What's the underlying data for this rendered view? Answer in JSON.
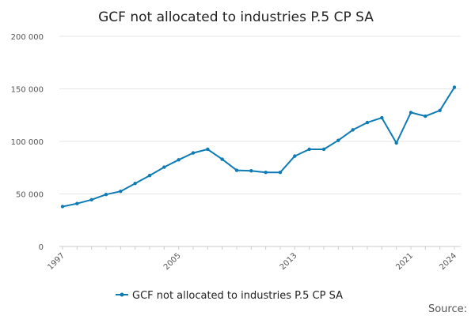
{
  "chart_data": {
    "type": "line",
    "title": "GCF not allocated to industries P.5 CP SA",
    "xlabel": "",
    "ylabel": "",
    "x": [
      1997,
      1998,
      1999,
      2000,
      2001,
      2002,
      2003,
      2004,
      2005,
      2006,
      2007,
      2008,
      2009,
      2010,
      2011,
      2012,
      2013,
      2014,
      2015,
      2016,
      2017,
      2018,
      2019,
      2020,
      2021,
      2022,
      2023,
      2024
    ],
    "x_tick_labels": [
      "1997",
      "2005",
      "2013",
      "2021",
      "2024"
    ],
    "x_tick_values": [
      1997,
      2005,
      2013,
      2021,
      2024
    ],
    "ylim": [
      0,
      200000
    ],
    "y_tick_values": [
      0,
      50000,
      100000,
      150000,
      200000
    ],
    "y_tick_labels": [
      "0",
      "50 000",
      "100 000",
      "150 000",
      "200 000"
    ],
    "grid": true,
    "legend_position": "bottom",
    "series": [
      {
        "name": "GCF not allocated to industries P.5 CP SA",
        "color": "#0f7bb5",
        "values": [
          38000,
          40800,
          44500,
          49500,
          52500,
          60000,
          67500,
          75500,
          82500,
          89000,
          92500,
          83000,
          72500,
          72000,
          70500,
          70500,
          86000,
          92500,
          92500,
          101000,
          111000,
          118000,
          122500,
          98500,
          127500,
          124000,
          129500,
          151500
        ]
      }
    ],
    "source_label": "Source:"
  }
}
